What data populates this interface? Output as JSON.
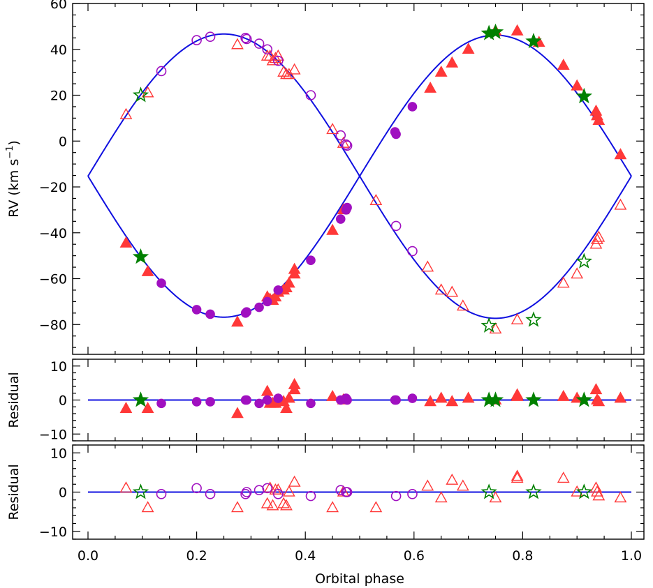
{
  "chart_data": [
    {
      "type": "scatter",
      "panel": "rv",
      "xlabel": "",
      "ylabel": "RV (km s⁻¹)",
      "xlim": [
        0.0,
        1.0
      ],
      "ylim": [
        -93,
        60
      ],
      "x_ticks": [
        0.0,
        0.2,
        0.4,
        0.6,
        0.8,
        1.0
      ],
      "x_tick_labels": [
        "",
        "",
        "",
        "",
        "",
        ""
      ],
      "y_ticks": [
        -80,
        -60,
        -40,
        -20,
        0,
        20,
        40,
        60
      ],
      "y_tick_labels": [
        "−80",
        "−60",
        "−40",
        "−20",
        "0",
        "20",
        "40",
        "60"
      ],
      "model": {
        "gamma": -15.3,
        "K_primary": 61.5,
        "K_secondary": 62.0,
        "color": "#1010e0"
      },
      "series": [
        {
          "marker": "triangle",
          "filled": true,
          "color": "#ff3838",
          "points": [
            [
              0.07,
              -44.5
            ],
            [
              0.11,
              -57
            ],
            [
              0.275,
              -79
            ],
            [
              0.33,
              -68
            ],
            [
              0.335,
              -69
            ],
            [
              0.34,
              -69.5
            ],
            [
              0.345,
              -68
            ],
            [
              0.35,
              -66
            ],
            [
              0.36,
              -65
            ],
            [
              0.365,
              -64
            ],
            [
              0.37,
              -62
            ],
            [
              0.38,
              -56
            ],
            [
              0.38,
              -58
            ],
            [
              0.45,
              -39
            ],
            [
              0.47,
              -30
            ],
            [
              0.63,
              23
            ],
            [
              0.65,
              30
            ],
            [
              0.67,
              34
            ],
            [
              0.7,
              40
            ],
            [
              0.75,
              48
            ],
            [
              0.79,
              48
            ],
            [
              0.83,
              43
            ],
            [
              0.875,
              33
            ],
            [
              0.9,
              24
            ],
            [
              0.935,
              13
            ],
            [
              0.937,
              11
            ],
            [
              0.94,
              9
            ],
            [
              0.98,
              -6
            ]
          ]
        },
        {
          "marker": "triangle",
          "filled": false,
          "color": "#ff3838",
          "points": [
            [
              0.07,
              11.5
            ],
            [
              0.11,
              21
            ],
            [
              0.275,
              42
            ],
            [
              0.33,
              37
            ],
            [
              0.335,
              37
            ],
            [
              0.34,
              35
            ],
            [
              0.345,
              36
            ],
            [
              0.35,
              37
            ],
            [
              0.36,
              30
            ],
            [
              0.365,
              29
            ],
            [
              0.37,
              29
            ],
            [
              0.38,
              31
            ],
            [
              0.45,
              5
            ],
            [
              0.47,
              -1
            ],
            [
              0.53,
              -26
            ],
            [
              0.625,
              -55
            ],
            [
              0.65,
              -65
            ],
            [
              0.67,
              -66
            ],
            [
              0.69,
              -72
            ],
            [
              0.75,
              -82
            ],
            [
              0.79,
              -78
            ],
            [
              0.875,
              -62
            ],
            [
              0.9,
              -58
            ],
            [
              0.935,
              -45
            ],
            [
              0.937,
              -43
            ],
            [
              0.94,
              -42
            ],
            [
              0.98,
              -28
            ]
          ]
        },
        {
          "marker": "circle",
          "filled": true,
          "color": "#a010c0",
          "points": [
            [
              0.135,
              -62
            ],
            [
              0.2,
              -73.5
            ],
            [
              0.225,
              -75.5
            ],
            [
              0.29,
              -75
            ],
            [
              0.292,
              -74.5
            ],
            [
              0.315,
              -72.5
            ],
            [
              0.33,
              -70
            ],
            [
              0.35,
              -65
            ],
            [
              0.41,
              -52
            ],
            [
              0.465,
              -34
            ],
            [
              0.475,
              -30
            ],
            [
              0.477,
              -29
            ],
            [
              0.565,
              4
            ],
            [
              0.567,
              3
            ],
            [
              0.597,
              15
            ]
          ]
        },
        {
          "marker": "circle",
          "filled": false,
          "color": "#a010c0",
          "points": [
            [
              0.135,
              30.5
            ],
            [
              0.2,
              44
            ],
            [
              0.225,
              45.5
            ],
            [
              0.29,
              45
            ],
            [
              0.292,
              44.5
            ],
            [
              0.315,
              42.5
            ],
            [
              0.33,
              40
            ],
            [
              0.35,
              35
            ],
            [
              0.41,
              20
            ],
            [
              0.465,
              2.5
            ],
            [
              0.475,
              -1.5
            ],
            [
              0.477,
              -2
            ],
            [
              0.567,
              -37
            ],
            [
              0.597,
              -48
            ]
          ]
        },
        {
          "marker": "star",
          "filled": true,
          "color": "#008000",
          "points": [
            [
              0.097,
              -50.5
            ],
            [
              0.738,
              47
            ],
            [
              0.75,
              47.5
            ],
            [
              0.82,
              43.5
            ],
            [
              0.913,
              19.5
            ]
          ]
        },
        {
          "marker": "star",
          "filled": false,
          "color": "#008000",
          "points": [
            [
              0.097,
              20
            ],
            [
              0.738,
              -80.5
            ],
            [
              0.82,
              -78
            ],
            [
              0.913,
              -52.5
            ]
          ]
        }
      ]
    },
    {
      "type": "scatter",
      "panel": "residual_primary",
      "xlabel": "",
      "ylabel": "Residual",
      "xlim": [
        0.0,
        1.0
      ],
      "ylim": [
        -12,
        12
      ],
      "x_ticks": [
        0.0,
        0.2,
        0.4,
        0.6,
        0.8,
        1.0
      ],
      "x_tick_labels": [
        "",
        "",
        "",
        "",
        "",
        ""
      ],
      "y_ticks": [
        -10,
        0,
        10
      ],
      "y_tick_labels": [
        "−10",
        "0",
        "10"
      ],
      "zero_line_color": "#1010e0",
      "series": [
        {
          "marker": "triangle",
          "filled": true,
          "color": "#ff3838",
          "points": [
            [
              0.07,
              -2.5
            ],
            [
              0.11,
              -2.5
            ],
            [
              0.275,
              -4
            ],
            [
              0.33,
              2.5
            ],
            [
              0.335,
              -1
            ],
            [
              0.34,
              -1
            ],
            [
              0.345,
              -1
            ],
            [
              0.35,
              0
            ],
            [
              0.36,
              -0.5
            ],
            [
              0.365,
              -2.5
            ],
            [
              0.37,
              0.5
            ],
            [
              0.38,
              4.5
            ],
            [
              0.38,
              3
            ],
            [
              0.45,
              1
            ],
            [
              0.47,
              0
            ],
            [
              0.63,
              -0.5
            ],
            [
              0.65,
              0.5
            ],
            [
              0.67,
              -0.5
            ],
            [
              0.7,
              0.5
            ],
            [
              0.75,
              0
            ],
            [
              0.79,
              1
            ],
            [
              0.79,
              1.5
            ],
            [
              0.875,
              1
            ],
            [
              0.9,
              0.5
            ],
            [
              0.935,
              3
            ],
            [
              0.937,
              0
            ],
            [
              0.94,
              -0.5
            ],
            [
              0.98,
              0.5
            ]
          ]
        },
        {
          "marker": "circle",
          "filled": true,
          "color": "#a010c0",
          "points": [
            [
              0.135,
              -1
            ],
            [
              0.2,
              -0.5
            ],
            [
              0.225,
              -0.5
            ],
            [
              0.29,
              0
            ],
            [
              0.292,
              0
            ],
            [
              0.315,
              -1
            ],
            [
              0.33,
              0
            ],
            [
              0.35,
              0.5
            ],
            [
              0.41,
              -1
            ],
            [
              0.465,
              0
            ],
            [
              0.475,
              0.5
            ],
            [
              0.477,
              0
            ],
            [
              0.565,
              0
            ],
            [
              0.567,
              0
            ],
            [
              0.597,
              0.5
            ]
          ]
        },
        {
          "marker": "star",
          "filled": true,
          "color": "#008000",
          "points": [
            [
              0.097,
              0
            ],
            [
              0.738,
              0
            ],
            [
              0.75,
              0
            ],
            [
              0.82,
              0
            ],
            [
              0.913,
              0
            ]
          ]
        }
      ]
    },
    {
      "type": "scatter",
      "panel": "residual_secondary",
      "xlabel": "Orbital phase",
      "ylabel": "Residual",
      "xlim": [
        0.0,
        1.0
      ],
      "ylim": [
        -12,
        12
      ],
      "x_ticks": [
        0.0,
        0.2,
        0.4,
        0.6,
        0.8,
        1.0
      ],
      "x_tick_labels": [
        "0.0",
        "0.2",
        "0.4",
        "0.6",
        "0.8",
        "1.0"
      ],
      "y_ticks": [
        -10,
        0,
        10
      ],
      "y_tick_labels": [
        "−10",
        "0",
        "10"
      ],
      "zero_line_color": "#1010e0",
      "series": [
        {
          "marker": "triangle",
          "filled": false,
          "color": "#ff3838",
          "points": [
            [
              0.07,
              1
            ],
            [
              0.11,
              -4
            ],
            [
              0.275,
              -4
            ],
            [
              0.33,
              -3
            ],
            [
              0.335,
              1
            ],
            [
              0.34,
              -3.5
            ],
            [
              0.345,
              0.5
            ],
            [
              0.35,
              0.5
            ],
            [
              0.36,
              -3
            ],
            [
              0.365,
              -3.5
            ],
            [
              0.37,
              0
            ],
            [
              0.38,
              2.5
            ],
            [
              0.45,
              -4
            ],
            [
              0.47,
              0
            ],
            [
              0.53,
              -4
            ],
            [
              0.625,
              1.5
            ],
            [
              0.65,
              -1.5
            ],
            [
              0.67,
              3
            ],
            [
              0.69,
              1.5
            ],
            [
              0.75,
              -1.5
            ],
            [
              0.79,
              3.5
            ],
            [
              0.79,
              4
            ],
            [
              0.875,
              3.5
            ],
            [
              0.9,
              0
            ],
            [
              0.935,
              1
            ],
            [
              0.937,
              0
            ],
            [
              0.94,
              -1
            ],
            [
              0.98,
              -1.5
            ]
          ]
        },
        {
          "marker": "circle",
          "filled": false,
          "color": "#a010c0",
          "points": [
            [
              0.135,
              -0.5
            ],
            [
              0.2,
              1
            ],
            [
              0.225,
              -0.5
            ],
            [
              0.29,
              -0.5
            ],
            [
              0.292,
              0
            ],
            [
              0.315,
              0.5
            ],
            [
              0.33,
              1
            ],
            [
              0.35,
              -0.5
            ],
            [
              0.41,
              -1
            ],
            [
              0.465,
              0.5
            ],
            [
              0.475,
              0
            ],
            [
              0.477,
              0
            ],
            [
              0.567,
              -1
            ],
            [
              0.597,
              -0.5
            ]
          ]
        },
        {
          "marker": "star",
          "filled": false,
          "color": "#008000",
          "points": [
            [
              0.097,
              0
            ],
            [
              0.738,
              0
            ],
            [
              0.82,
              0
            ],
            [
              0.913,
              0
            ]
          ]
        }
      ]
    }
  ]
}
